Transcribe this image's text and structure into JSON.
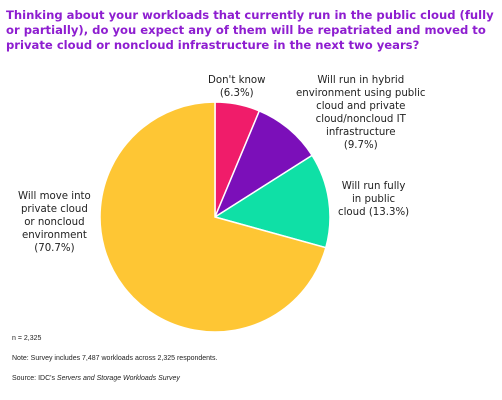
{
  "title": "Thinking about your workloads that currently run in the public cloud (fully or partially), do you expect any of them will be repatriated and moved to private cloud or noncloud infrastructure in the next two years?",
  "chart_data": {
    "type": "pie",
    "title": "Thinking about your workloads that currently run in the public cloud (fully or partially), do you expect any of them will be repatriated and moved to private cloud or noncloud infrastructure in the next two years?",
    "slices": [
      {
        "label": "Don't know",
        "value": 6.3,
        "value_label": "(6.3%)",
        "color": "#f01c6a"
      },
      {
        "label": "Will run in hybrid environment using public cloud and private cloud/noncloud IT infrastructure",
        "value": 9.7,
        "value_label": "(9.7%)",
        "color": "#7b0fb9"
      },
      {
        "label": "Will run fully in public cloud",
        "value": 13.3,
        "value_label": "(13.3%)",
        "color": "#0fe0a6"
      },
      {
        "label": "Will move into private cloud or noncloud environment",
        "value": 70.7,
        "value_label": "(70.7%)",
        "color": "#fec634"
      }
    ],
    "legend": "none"
  },
  "labels": {
    "dont_know": [
      "Don't know",
      "(6.3%)"
    ],
    "hybrid": [
      "Will run in hybrid",
      "environment using public",
      "cloud and private",
      "cloud/noncloud IT",
      "infrastructure",
      "(9.7%)"
    ],
    "public": [
      "Will run fully",
      "in public",
      "cloud (13.3%)"
    ],
    "private": [
      "Will move into",
      "private cloud",
      "or noncloud",
      "environment",
      "(70.7%)"
    ]
  },
  "notes": {
    "n": "n = 2,325",
    "note": "Note: Survey includes 7,487 workloads across 2,325 respondents.",
    "source_prefix": "Source: IDC's ",
    "source_title": "Servers and Storage Workloads Survey"
  }
}
